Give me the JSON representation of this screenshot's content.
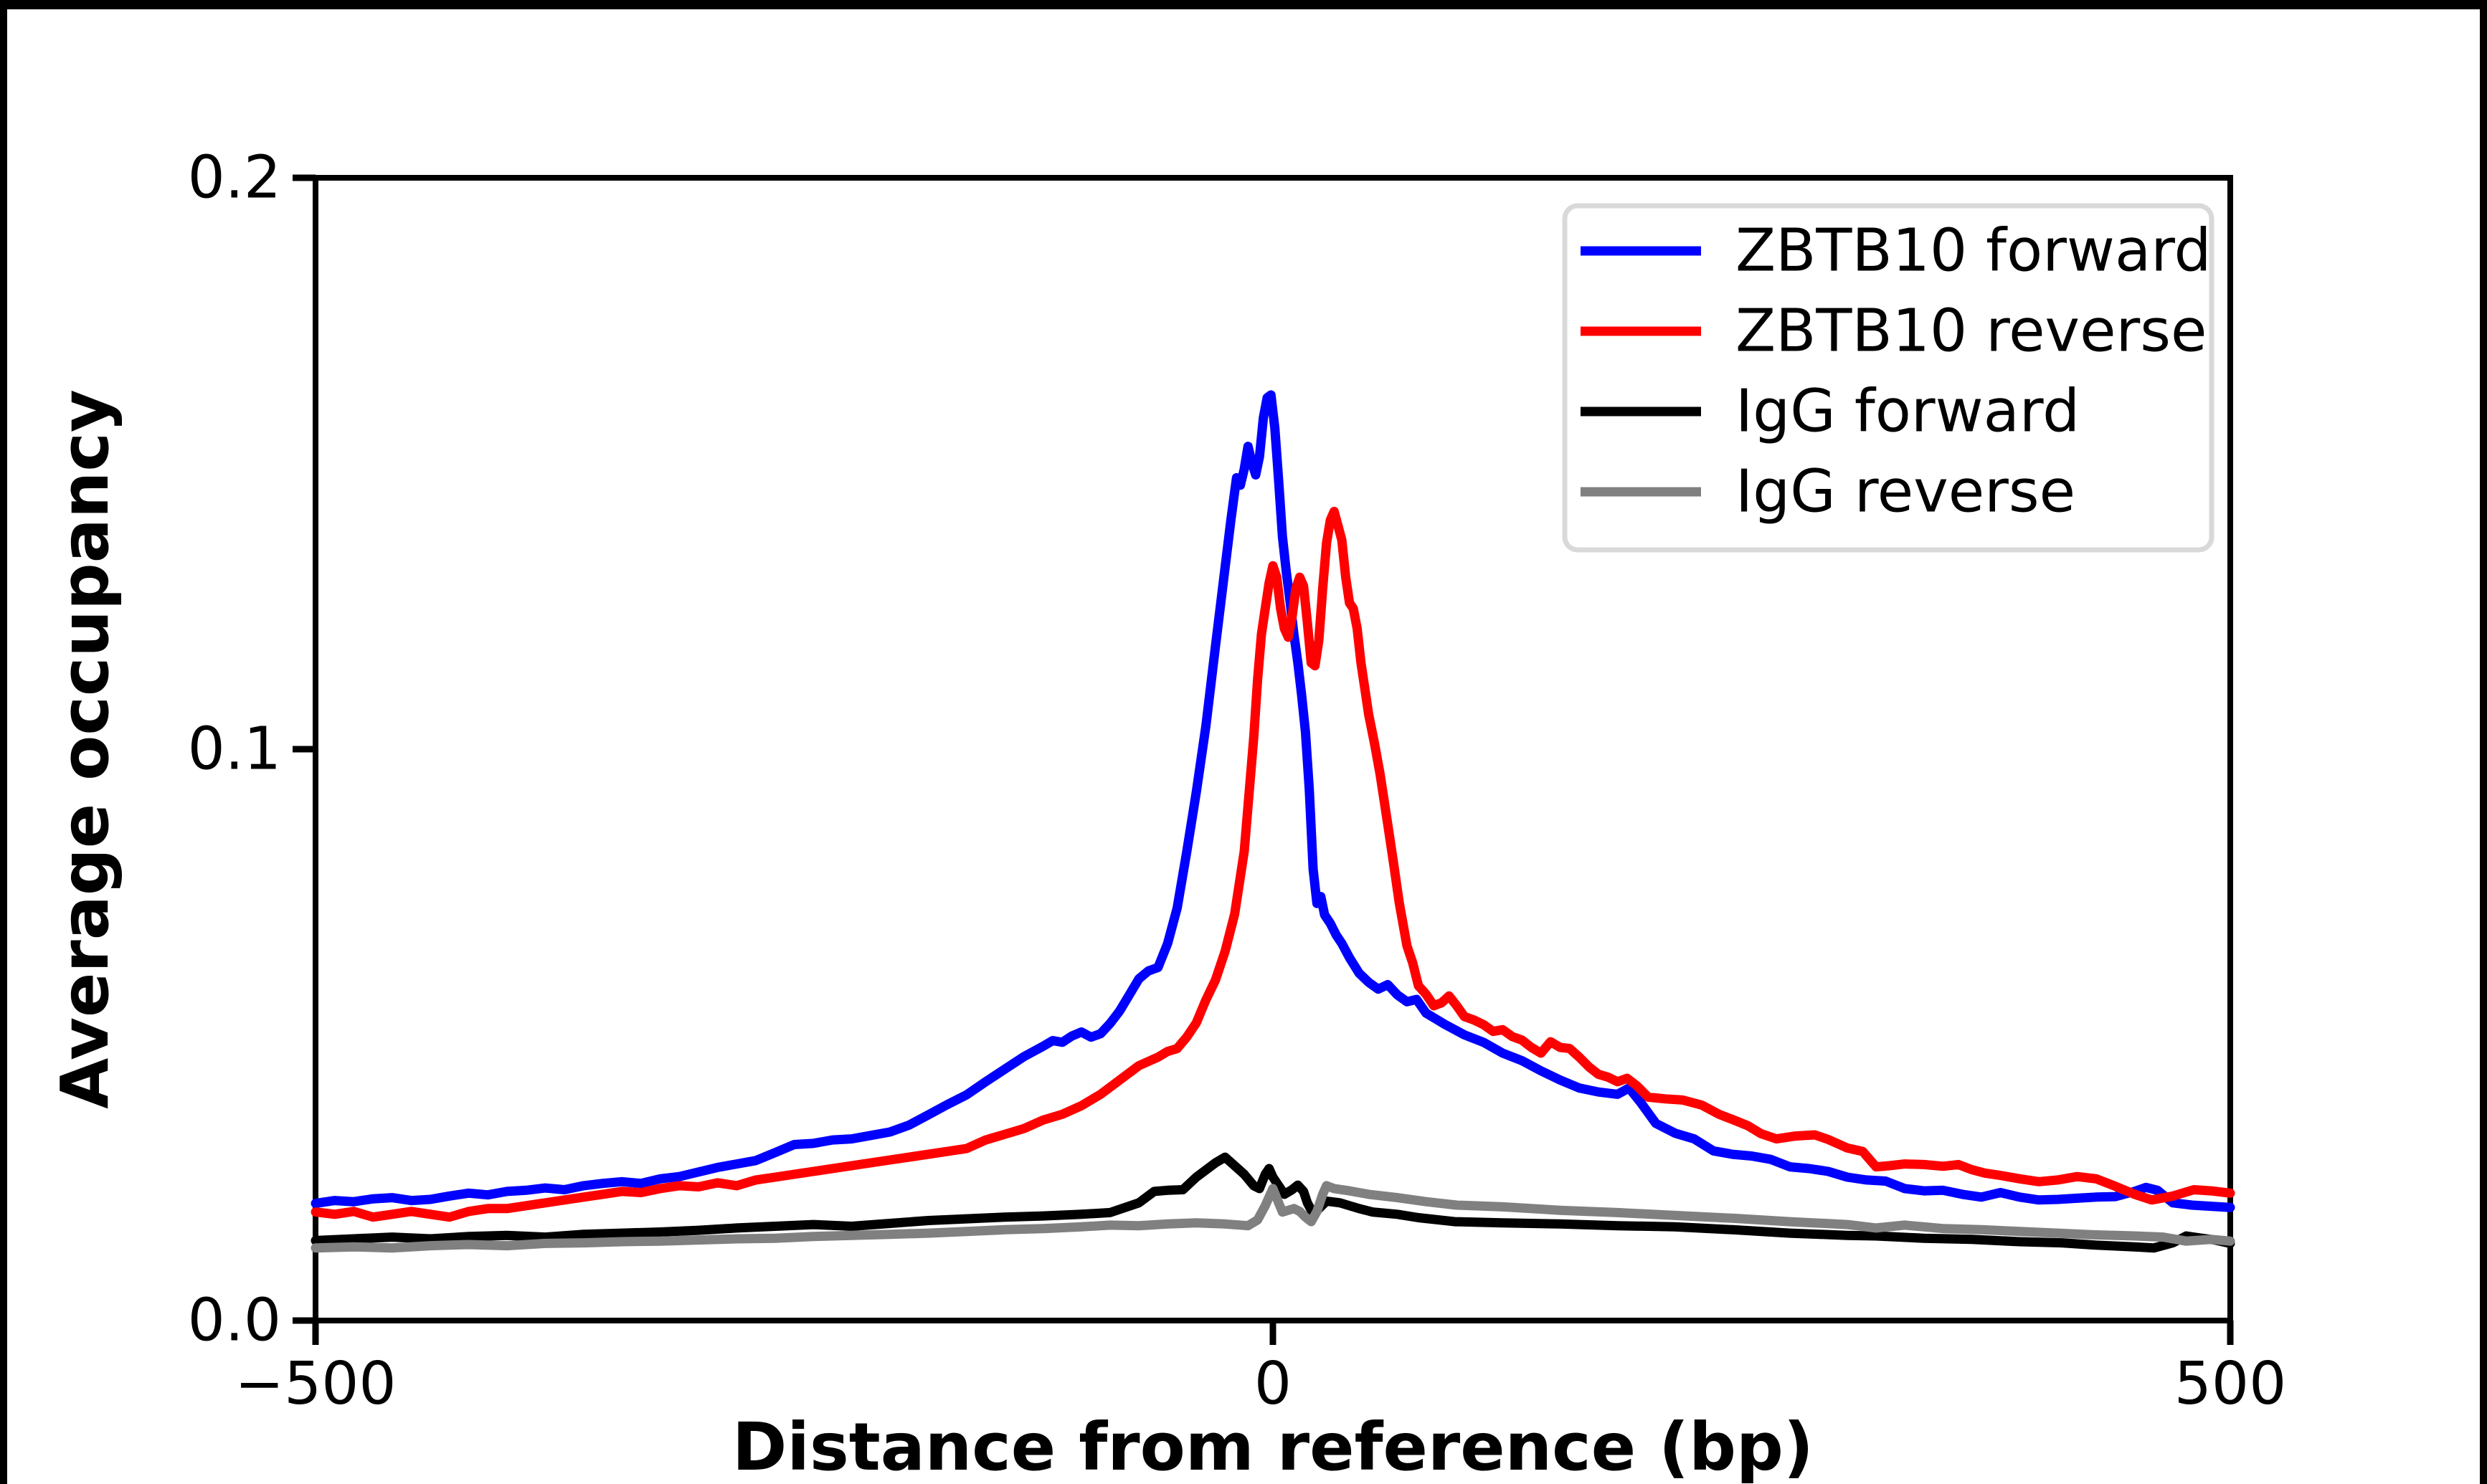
{
  "figure": {
    "background": "#ffffff",
    "frame_color": "#000000"
  },
  "chart_data": {
    "type": "line",
    "title": "",
    "xlabel": "Distance from reference (bp)",
    "ylabel": "Average occupancy",
    "xlim": [
      -500,
      500
    ],
    "ylim": [
      0.0,
      0.2
    ],
    "xticks": [
      -500,
      0,
      500
    ],
    "xtick_labels": [
      "−500",
      "0",
      "500"
    ],
    "yticks": [
      0.0,
      0.1,
      0.2
    ],
    "ytick_labels": [
      "0.0",
      "0.1",
      "0.2"
    ],
    "grid": false,
    "legend": {
      "position": "upper right",
      "border_color": "#d9d9d9",
      "background": "#ffffff"
    },
    "series": [
      {
        "name": "ZBTB10 forward",
        "color": "#0000ff",
        "x": [
          -500,
          -490,
          -480,
          -470,
          -460,
          -450,
          -440,
          -430,
          -420,
          -410,
          -400,
          -390,
          -380,
          -370,
          -360,
          -350,
          -340,
          -330,
          -320,
          -310,
          -300,
          -290,
          -280,
          -270,
          -260,
          -250,
          -240,
          -230,
          -220,
          -210,
          -200,
          -190,
          -180,
          -170,
          -160,
          -150,
          -140,
          -130,
          -120,
          -115,
          -110,
          -105,
          -100,
          -95,
          -90,
          -85,
          -80,
          -75,
          -70,
          -65,
          -60,
          -55,
          -50,
          -45,
          -40,
          -35,
          -30,
          -26,
          -22,
          -19,
          -17,
          -15,
          -13,
          -11,
          -9,
          -7,
          -5,
          -3,
          -1,
          1,
          3,
          5,
          7,
          9,
          11,
          13,
          15,
          17,
          19,
          21,
          23,
          25,
          27,
          30,
          33,
          36,
          40,
          45,
          50,
          55,
          60,
          65,
          70,
          75,
          80,
          85,
          90,
          100,
          110,
          120,
          130,
          140,
          150,
          160,
          170,
          180,
          186,
          192,
          200,
          210,
          220,
          230,
          240,
          250,
          260,
          270,
          280,
          290,
          300,
          310,
          320,
          330,
          340,
          350,
          360,
          370,
          380,
          390,
          400,
          410,
          420,
          430,
          440,
          450,
          456,
          462,
          470,
          480,
          490,
          500
        ],
        "y": [
          0.0205,
          0.021,
          0.0208,
          0.0213,
          0.0215,
          0.021,
          0.0212,
          0.0218,
          0.0223,
          0.022,
          0.0226,
          0.0228,
          0.0232,
          0.0229,
          0.0236,
          0.024,
          0.0243,
          0.024,
          0.0248,
          0.0252,
          0.026,
          0.0268,
          0.0274,
          0.028,
          0.0294,
          0.0308,
          0.031,
          0.0316,
          0.0318,
          0.0324,
          0.033,
          0.0342,
          0.036,
          0.0378,
          0.0395,
          0.0418,
          0.044,
          0.0462,
          0.048,
          0.049,
          0.0487,
          0.0498,
          0.0505,
          0.0496,
          0.0502,
          0.052,
          0.0542,
          0.057,
          0.0598,
          0.0612,
          0.0618,
          0.066,
          0.0722,
          0.082,
          0.0925,
          0.104,
          0.118,
          0.129,
          0.14,
          0.1475,
          0.1462,
          0.149,
          0.153,
          0.1502,
          0.148,
          0.1512,
          0.158,
          0.1615,
          0.162,
          0.1562,
          0.147,
          0.1372,
          0.131,
          0.1258,
          0.12,
          0.1152,
          0.1095,
          0.103,
          0.093,
          0.079,
          0.073,
          0.0742,
          0.071,
          0.0695,
          0.0675,
          0.066,
          0.0635,
          0.0608,
          0.0592,
          0.058,
          0.0588,
          0.057,
          0.0558,
          0.0562,
          0.0538,
          0.0528,
          0.0518,
          0.05,
          0.0487,
          0.0468,
          0.0455,
          0.0437,
          0.0421,
          0.0407,
          0.04,
          0.0396,
          0.0407,
          0.0382,
          0.0345,
          0.0328,
          0.0318,
          0.0297,
          0.0291,
          0.0288,
          0.0282,
          0.0269,
          0.0266,
          0.0261,
          0.0251,
          0.0246,
          0.0244,
          0.0231,
          0.0227,
          0.0228,
          0.0221,
          0.0216,
          0.0224,
          0.0216,
          0.0211,
          0.0212,
          0.0214,
          0.0216,
          0.0217,
          0.0226,
          0.0233,
          0.0228,
          0.0206,
          0.0202,
          0.02,
          0.0198
        ]
      },
      {
        "name": "ZBTB10 reverse",
        "color": "#ff0000",
        "x": [
          -500,
          -490,
          -480,
          -470,
          -460,
          -450,
          -440,
          -430,
          -420,
          -410,
          -400,
          -390,
          -380,
          -370,
          -360,
          -350,
          -340,
          -330,
          -320,
          -310,
          -300,
          -290,
          -280,
          -270,
          -260,
          -250,
          -240,
          -230,
          -220,
          -210,
          -200,
          -190,
          -180,
          -170,
          -160,
          -150,
          -140,
          -130,
          -120,
          -110,
          -100,
          -90,
          -80,
          -70,
          -60,
          -55,
          -50,
          -45,
          -40,
          -35,
          -30,
          -25,
          -20,
          -15,
          -12,
          -10,
          -8,
          -6,
          -4,
          -2,
          0,
          2,
          4,
          6,
          8,
          10,
          12,
          14,
          16,
          18,
          20,
          22,
          24,
          26,
          28,
          30,
          32,
          34,
          36,
          38,
          40,
          42,
          44,
          46,
          48,
          50,
          53,
          56,
          60,
          63,
          66,
          70,
          73,
          76,
          80,
          84,
          88,
          92,
          96,
          100,
          105,
          110,
          115,
          120,
          125,
          130,
          135,
          140,
          145,
          150,
          155,
          160,
          165,
          170,
          175,
          180,
          185,
          190,
          196,
          205,
          214,
          224,
          233,
          240,
          248,
          255,
          263,
          273,
          283,
          290,
          300,
          308,
          315,
          322,
          330,
          340,
          350,
          358,
          365,
          372,
          380,
          390,
          400,
          410,
          420,
          430,
          440,
          450,
          459,
          470,
          481,
          490,
          500
        ],
        "y": [
          0.019,
          0.0186,
          0.0191,
          0.0181,
          0.0186,
          0.0191,
          0.0186,
          0.0181,
          0.0191,
          0.0196,
          0.0196,
          0.0201,
          0.0206,
          0.0211,
          0.0216,
          0.0221,
          0.0226,
          0.0224,
          0.0231,
          0.0236,
          0.0234,
          0.0241,
          0.0236,
          0.0246,
          0.0251,
          0.0256,
          0.0261,
          0.0266,
          0.0271,
          0.0276,
          0.0281,
          0.0286,
          0.0291,
          0.0296,
          0.0301,
          0.0316,
          0.0326,
          0.0336,
          0.0351,
          0.0361,
          0.0376,
          0.0396,
          0.0421,
          0.0446,
          0.0461,
          0.0471,
          0.0476,
          0.0496,
          0.0521,
          0.0561,
          0.0596,
          0.0646,
          0.0711,
          0.0821,
          0.0941,
          0.1021,
          0.1121,
          0.1201,
          0.1246,
          0.1291,
          0.1321,
          0.1301,
          0.1246,
          0.1211,
          0.1196,
          0.1231,
          0.1281,
          0.1301,
          0.1286,
          0.1221,
          0.1151,
          0.1146,
          0.1191,
          0.1281,
          0.1361,
          0.1401,
          0.1416,
          0.1391,
          0.1366,
          0.1301,
          0.1256,
          0.1246,
          0.1211,
          0.1151,
          0.1106,
          0.1061,
          0.1011,
          0.0956,
          0.0868,
          0.0801,
          0.0731,
          0.0656,
          0.0626,
          0.0586,
          0.0571,
          0.0551,
          0.0556,
          0.0568,
          0.0551,
          0.0532,
          0.0526,
          0.0518,
          0.0506,
          0.0509,
          0.0497,
          0.0491,
          0.0478,
          0.0468,
          0.0488,
          0.0478,
          0.0476,
          0.0461,
          0.0444,
          0.0431,
          0.0426,
          0.0418,
          0.0424,
          0.0411,
          0.0391,
          0.0388,
          0.0386,
          0.0377,
          0.0361,
          0.0352,
          0.0341,
          0.0327,
          0.0318,
          0.0323,
          0.0325,
          0.0317,
          0.0302,
          0.0296,
          0.0269,
          0.0271,
          0.0274,
          0.0273,
          0.027,
          0.0273,
          0.0264,
          0.0258,
          0.0254,
          0.0248,
          0.0243,
          0.0246,
          0.0252,
          0.0248,
          0.0235,
          0.0221,
          0.0211,
          0.0218,
          0.0229,
          0.0227,
          0.0223
        ]
      },
      {
        "name": "IgG forward",
        "color": "#000000",
        "x": [
          -500,
          -480,
          -460,
          -440,
          -420,
          -400,
          -380,
          -360,
          -340,
          -320,
          -300,
          -280,
          -260,
          -240,
          -220,
          -200,
          -180,
          -160,
          -140,
          -120,
          -100,
          -85,
          -70,
          -62,
          -55,
          -47,
          -40,
          -36,
          -30,
          -25,
          -20,
          -15,
          -10,
          -7,
          -4,
          -2,
          0,
          3,
          6,
          10,
          13,
          16,
          18,
          21,
          24,
          28,
          35,
          45,
          52,
          65,
          76,
          95,
          120,
          150,
          180,
          210,
          240,
          270,
          300,
          315,
          340,
          365,
          390,
          412,
          430,
          450,
          460,
          470,
          477,
          485,
          492,
          500
        ],
        "y": [
          0.014,
          0.0143,
          0.0146,
          0.0143,
          0.0147,
          0.0149,
          0.0146,
          0.0151,
          0.0153,
          0.0155,
          0.0158,
          0.0162,
          0.0165,
          0.0168,
          0.0165,
          0.017,
          0.0175,
          0.0178,
          0.0181,
          0.0183,
          0.0186,
          0.0189,
          0.0206,
          0.0226,
          0.0228,
          0.0229,
          0.0251,
          0.0261,
          0.0276,
          0.0286,
          0.0271,
          0.0256,
          0.0236,
          0.0231,
          0.0256,
          0.0266,
          0.0251,
          0.0236,
          0.0221,
          0.0229,
          0.0237,
          0.0226,
          0.0206,
          0.0187,
          0.0196,
          0.0209,
          0.0206,
          0.0196,
          0.019,
          0.0186,
          0.018,
          0.0173,
          0.0171,
          0.0169,
          0.0166,
          0.0164,
          0.0159,
          0.0153,
          0.0149,
          0.0148,
          0.0144,
          0.0142,
          0.0138,
          0.0136,
          0.0132,
          0.0129,
          0.0127,
          0.0136,
          0.0148,
          0.0144,
          0.0141,
          0.0135
        ]
      },
      {
        "name": "IgG reverse",
        "color": "#808080",
        "x": [
          -500,
          -480,
          -460,
          -440,
          -420,
          -400,
          -380,
          -360,
          -340,
          -320,
          -300,
          -280,
          -260,
          -240,
          -220,
          -200,
          -180,
          -160,
          -140,
          -120,
          -100,
          -85,
          -70,
          -55,
          -40,
          -25,
          -13,
          -8,
          -4,
          0,
          3,
          5,
          8,
          11,
          14,
          17,
          20,
          23,
          26,
          28,
          32,
          40,
          50,
          65,
          80,
          96,
          120,
          150,
          180,
          210,
          240,
          270,
          300,
          315,
          330,
          350,
          370,
          390,
          410,
          430,
          450,
          465,
          477,
          490,
          500
        ],
        "y": [
          0.0127,
          0.0129,
          0.0127,
          0.0131,
          0.0133,
          0.0131,
          0.0135,
          0.0136,
          0.0138,
          0.0139,
          0.0141,
          0.0143,
          0.0144,
          0.0147,
          0.0149,
          0.0151,
          0.0153,
          0.0156,
          0.0159,
          0.0161,
          0.0164,
          0.0167,
          0.0166,
          0.0169,
          0.0171,
          0.0169,
          0.0166,
          0.0176,
          0.0201,
          0.0231,
          0.0206,
          0.019,
          0.0193,
          0.0196,
          0.0191,
          0.0181,
          0.0173,
          0.0191,
          0.0221,
          0.0236,
          0.0231,
          0.0227,
          0.0221,
          0.0215,
          0.0208,
          0.0202,
          0.0199,
          0.0193,
          0.0189,
          0.0184,
          0.0179,
          0.0173,
          0.0168,
          0.0162,
          0.0167,
          0.0161,
          0.0159,
          0.0156,
          0.0153,
          0.015,
          0.0148,
          0.0146,
          0.0139,
          0.0142,
          0.0139
        ]
      }
    ]
  }
}
